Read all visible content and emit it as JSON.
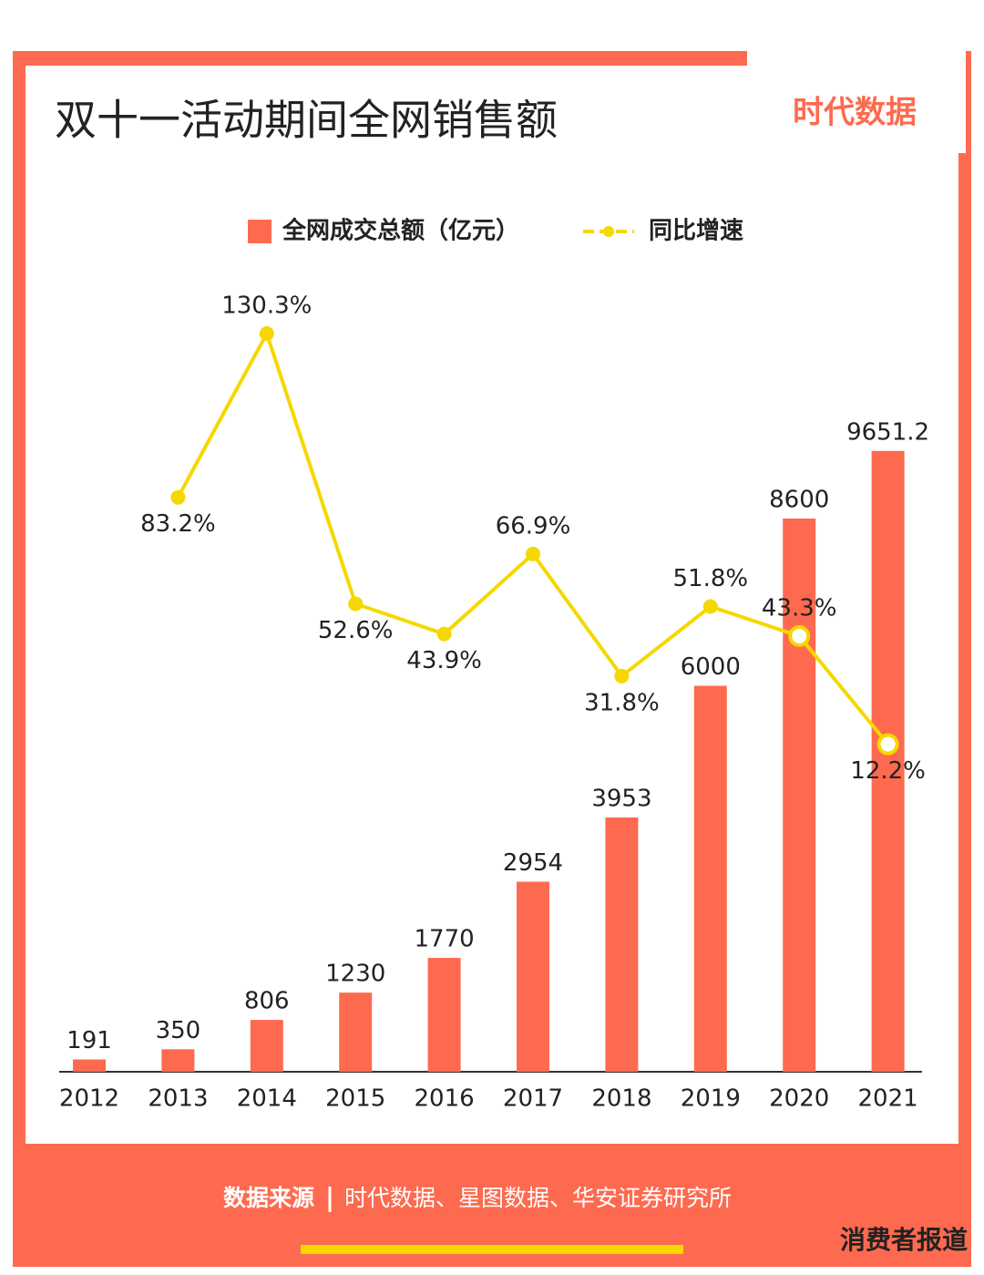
{
  "chart_data": {
    "type": "bar-line",
    "title": "双十一活动期间全网销售额",
    "logo": "时代数据",
    "categories": [
      "2012",
      "2013",
      "2014",
      "2015",
      "2016",
      "2017",
      "2018",
      "2019",
      "2020",
      "2021"
    ],
    "series": [
      {
        "name": "全网成交总额（亿元）",
        "type": "bar",
        "color": "#fe6a4f",
        "values": [
          191,
          350,
          806,
          1230,
          1770,
          2954,
          3953,
          6000,
          8600,
          9651.2
        ]
      },
      {
        "name": "同比增速",
        "type": "line",
        "axis": "y2",
        "color": "#f5d800",
        "values": [
          null,
          83.2,
          130.3,
          52.6,
          43.9,
          66.9,
          31.8,
          51.8,
          43.3,
          12.2
        ],
        "value_labels": [
          null,
          "83.2%",
          "130.3%",
          "52.6%",
          "43.9%",
          "66.9%",
          "31.8%",
          "51.8%",
          "43.3%",
          "12.2%"
        ]
      }
    ],
    "ylim": [
      0,
      12000
    ],
    "y2lim": [
      -82,
      140
    ],
    "source_label": "数据来源",
    "source": "时代数据、星图数据、华安证券研究所",
    "credit": "消费者报道"
  }
}
